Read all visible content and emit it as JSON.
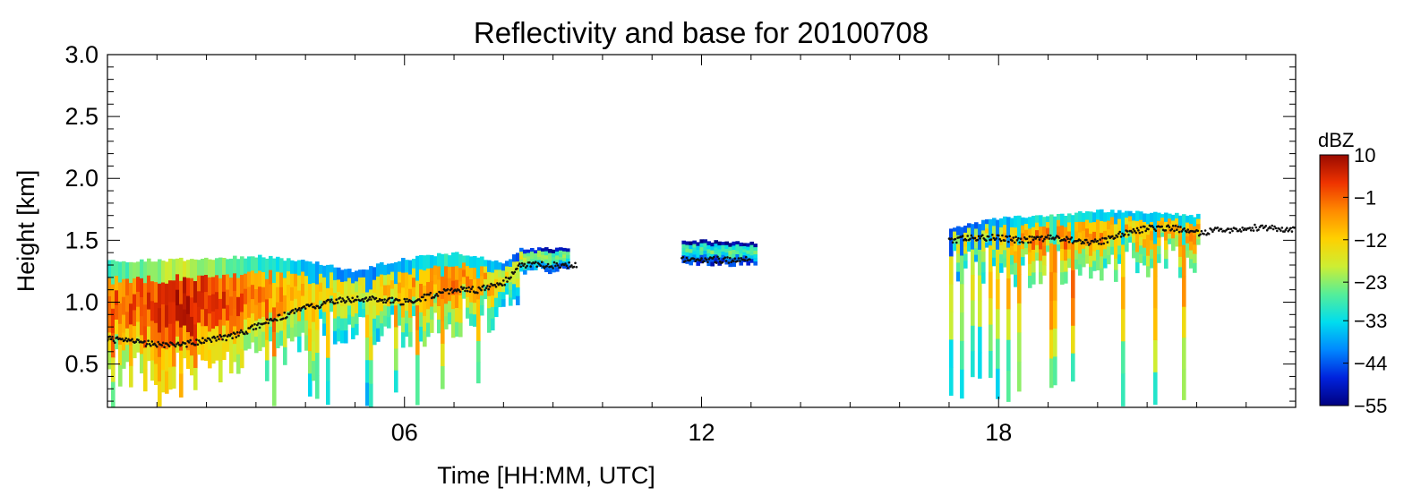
{
  "chart_data": {
    "type": "heatmap",
    "title": "Reflectivity and base for 20100708",
    "xlabel": "Time [HH:MM, UTC]",
    "ylabel": "Height [km]",
    "xlim": [
      0,
      24
    ],
    "ylim": [
      0.15,
      3.0
    ],
    "x_ticks": [
      {
        "value": 6,
        "label": "06"
      },
      {
        "value": 12,
        "label": "12"
      },
      {
        "value": 18,
        "label": "18"
      }
    ],
    "y_ticks": [
      {
        "value": 0.5,
        "label": "0.5"
      },
      {
        "value": 1.0,
        "label": "1.0"
      },
      {
        "value": 1.5,
        "label": "1.5"
      },
      {
        "value": 2.0,
        "label": "2.0"
      },
      {
        "value": 2.5,
        "label": "2.5"
      },
      {
        "value": 3.0,
        "label": "3.0"
      }
    ],
    "grid": false,
    "colorbar": {
      "title": "dBZ",
      "range": [
        -55,
        10
      ],
      "ticks": [
        10,
        -1,
        -12,
        -23,
        -33,
        -44,
        -55
      ],
      "tick_labels": [
        "10",
        "−1",
        "−12",
        "−23",
        "−33",
        "−44",
        "−55"
      ],
      "colors": [
        "#00007f",
        "#0022dd",
        "#0088ff",
        "#00ddee",
        "#55ee99",
        "#cdee33",
        "#ffd000",
        "#ff8a00",
        "#ee3300",
        "#9a0a00"
      ],
      "placement": "right"
    },
    "reflectivity": {
      "cloud_top_km": [
        [
          0,
          1.33
        ],
        [
          1,
          1.34
        ],
        [
          2,
          1.35
        ],
        [
          3,
          1.37
        ],
        [
          4,
          1.33
        ],
        [
          5,
          1.25
        ],
        [
          5.4,
          1.3
        ],
        [
          6,
          1.35
        ],
        [
          7,
          1.4
        ],
        [
          8,
          1.32
        ],
        [
          8.3,
          1.43
        ],
        [
          9.3,
          1.43
        ],
        [
          11.6,
          1.5
        ],
        [
          13.1,
          1.48
        ],
        [
          17,
          1.6
        ],
        [
          18,
          1.68
        ],
        [
          19,
          1.7
        ],
        [
          20,
          1.74
        ],
        [
          21,
          1.72
        ],
        [
          22,
          1.7
        ],
        [
          24,
          1.7
        ]
      ],
      "typical_dbz": [
        [
          0,
          -15
        ],
        [
          1.5,
          -5
        ],
        [
          3,
          -15
        ],
        [
          5,
          -28
        ],
        [
          7,
          -15
        ],
        [
          9,
          -38
        ],
        [
          12,
          -40
        ],
        [
          17.5,
          -28
        ],
        [
          19,
          -15
        ],
        [
          20.5,
          -22
        ],
        [
          22,
          -18
        ],
        [
          24,
          -25
        ]
      ]
    },
    "cloud_base_km": [
      [
        0,
        0.7
      ],
      [
        0.5,
        0.68
      ],
      [
        1,
        0.66
      ],
      [
        1.5,
        0.65
      ],
      [
        2,
        0.7
      ],
      [
        2.5,
        0.72
      ],
      [
        3,
        0.8
      ],
      [
        3.5,
        0.88
      ],
      [
        4,
        0.95
      ],
      [
        4.5,
        1.0
      ],
      [
        5,
        1.03
      ],
      [
        5.5,
        1.02
      ],
      [
        6,
        1.0
      ],
      [
        6.5,
        1.05
      ],
      [
        7,
        1.1
      ],
      [
        7.5,
        1.1
      ],
      [
        8,
        1.15
      ],
      [
        8.3,
        1.3
      ],
      [
        9,
        1.3
      ],
      [
        9.5,
        1.3
      ],
      [
        11.6,
        1.35
      ],
      [
        12.5,
        1.34
      ],
      [
        13,
        1.34
      ],
      [
        17,
        1.5
      ],
      [
        17.5,
        1.52
      ],
      [
        18,
        1.52
      ],
      [
        18.5,
        1.5
      ],
      [
        19,
        1.52
      ],
      [
        19.5,
        1.5
      ],
      [
        20,
        1.48
      ],
      [
        20.5,
        1.55
      ],
      [
        21,
        1.6
      ],
      [
        21.5,
        1.6
      ],
      [
        22,
        1.56
      ],
      [
        22.5,
        1.58
      ],
      [
        23,
        1.6
      ],
      [
        23.5,
        1.6
      ],
      [
        24,
        1.58
      ]
    ]
  }
}
